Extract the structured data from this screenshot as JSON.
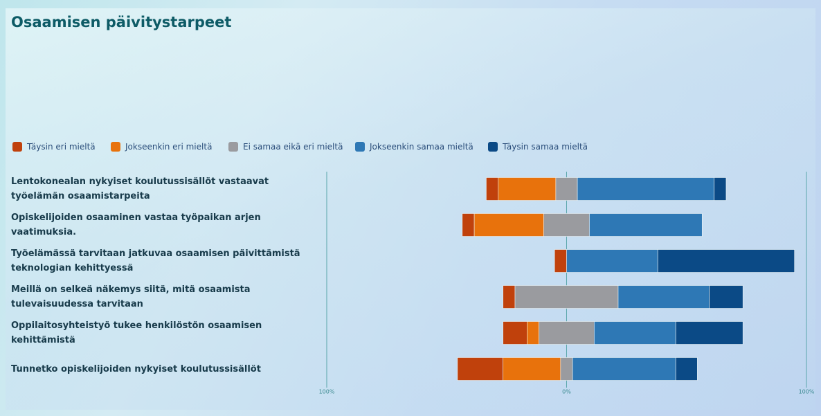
{
  "chart_data": {
    "type": "diverging_bar",
    "title": "Osaamisen päivitystarpeet",
    "categories": [
      "Lentokonealan nykyiset koulutussisällöt vastaavat työelämän osaamistarpeita",
      "Opiskelijoiden osaaminen vastaa työpaikan arjen vaatimuksia.",
      "Työelämässä tarvitaan jatkuvaa osaamisen päivittämistä teknologian kehittyessä",
      "Meillä on selkeä näkemys siitä, mitä osaamista tulevaisuudessa tarvitaan",
      "Oppilaitosyhteistyö tukee henkilöstön osaamisen kehittämistä",
      "Tunnetko opiskelijoiden  nykyiset koulutussisällöt"
    ],
    "series": [
      {
        "name": "Täysin eri mieltä",
        "color": "#c0410c",
        "values": [
          5,
          5,
          5,
          5,
          10,
          19
        ]
      },
      {
        "name": "Jokseenkin eri mieltä",
        "color": "#e8720c",
        "values": [
          24,
          29,
          0,
          0,
          5,
          24
        ]
      },
      {
        "name": "Ei samaa eikä eri mieltä",
        "color": "#9a9b9f",
        "values": [
          9,
          19,
          0,
          43,
          23,
          5
        ]
      },
      {
        "name": "Jokseenkin samaa mieltä",
        "color": "#2e78b5",
        "values": [
          57,
          47,
          38,
          38,
          34,
          43
        ]
      },
      {
        "name": "Täysin samaa mieltä",
        "color": "#0b4a86",
        "values": [
          5,
          0,
          57,
          14,
          28,
          9
        ]
      }
    ],
    "xlim": [
      -100,
      100
    ],
    "xticks": [
      {
        "value": -100,
        "label": "100%"
      },
      {
        "value": 0,
        "label": "0%"
      },
      {
        "value": 100,
        "label": "100%"
      }
    ]
  }
}
